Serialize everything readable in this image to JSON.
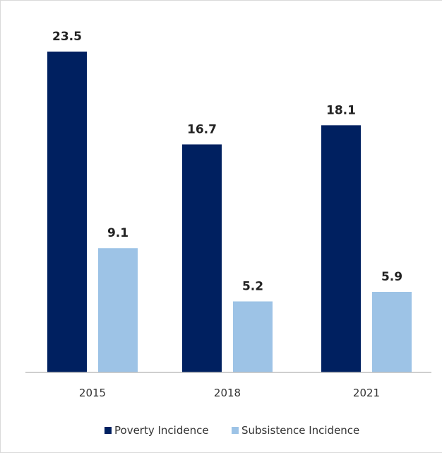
{
  "chart_data": {
    "type": "bar",
    "title": "",
    "xlabel": "",
    "ylabel": "",
    "categories": [
      "2015",
      "2018",
      "2021"
    ],
    "series": [
      {
        "name": "Poverty Incidence",
        "values": [
          23.5,
          16.7,
          18.1
        ],
        "labels": [
          "23.5",
          "16.7",
          "18.1"
        ],
        "color": "#002060"
      },
      {
        "name": "Subsistence Incidence",
        "values": [
          9.1,
          5.2,
          5.9
        ],
        "labels": [
          "9.1",
          "5.2",
          "5.9"
        ],
        "color": "#9dc3e6"
      }
    ],
    "ylim": [
      0,
      25
    ],
    "grid": false,
    "legend": "bottom"
  }
}
